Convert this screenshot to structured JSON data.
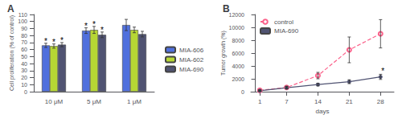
{
  "chart_data": [
    {
      "type": "bar",
      "title": "A",
      "categories": [
        "10 μM",
        "5 μM",
        "1 μM"
      ],
      "ylabel": "Cell proliferation (% of control)",
      "ylim": [
        0,
        110
      ],
      "yticks": [
        0,
        10,
        20,
        30,
        40,
        50,
        60,
        70,
        80,
        90,
        100,
        110
      ],
      "grid": false,
      "legend": "right",
      "series": [
        {
          "name": "MIA-606",
          "values": [
            66,
            87,
            95
          ],
          "errors": [
            3,
            4,
            8
          ],
          "annotations": [
            "*",
            "*",
            null
          ]
        },
        {
          "name": "MIA-602",
          "values": [
            65,
            88,
            88
          ],
          "errors": [
            3,
            5,
            4
          ],
          "annotations": [
            "*",
            "*",
            null
          ]
        },
        {
          "name": "MIA-690",
          "values": [
            67,
            81,
            82
          ],
          "errors": [
            3,
            4,
            4
          ],
          "annotations": [
            "*",
            "*",
            null
          ]
        }
      ]
    },
    {
      "type": "line",
      "title": "B",
      "x": [
        1,
        7,
        14,
        21,
        28
      ],
      "xlabel": "days",
      "ylabel": "Tumor growth (%)",
      "xlim": [
        -1,
        31
      ],
      "xticks": [
        1,
        7,
        14,
        21,
        28
      ],
      "ylim": [
        0,
        12000
      ],
      "yticks": [
        0,
        2000,
        4000,
        6000,
        8000,
        10000,
        12000
      ],
      "grid": false,
      "legend": "upper left",
      "series": [
        {
          "name": "control",
          "values": [
            200,
            650,
            2500,
            6500,
            9000
          ],
          "errors": [
            100,
            200,
            500,
            2000,
            2200
          ],
          "marker": "open circle",
          "line_style": "dashed"
        },
        {
          "name": "MIA-690",
          "values": [
            150,
            600,
            1100,
            1550,
            2300
          ],
          "errors": [
            80,
            150,
            200,
            300,
            400
          ],
          "marker": "circle",
          "line_style": "solid",
          "annotations": [
            null,
            null,
            null,
            null,
            "*"
          ]
        }
      ]
    }
  ]
}
